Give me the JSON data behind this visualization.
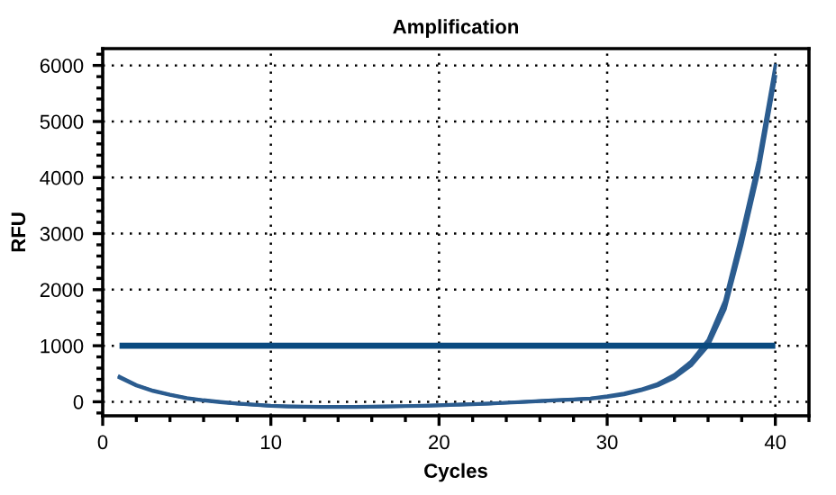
{
  "chart_data": {
    "type": "line",
    "title": "Amplification",
    "xlabel": "Cycles",
    "ylabel": "RFU",
    "x": [
      1,
      2,
      3,
      4,
      5,
      6,
      7,
      8,
      9,
      10,
      11,
      12,
      13,
      14,
      15,
      16,
      17,
      18,
      19,
      20,
      21,
      22,
      23,
      24,
      25,
      26,
      27,
      28,
      29,
      30,
      31,
      32,
      33,
      34,
      35,
      36,
      37,
      38,
      39,
      40
    ],
    "series": [
      {
        "color": "#2b5c8f",
        "values": [
          450,
          300,
          200,
          130,
          70,
          30,
          0,
          -30,
          -50,
          -70,
          -80,
          -85,
          -90,
          -90,
          -90,
          -85,
          -80,
          -75,
          -70,
          -60,
          -50,
          -40,
          -30,
          -15,
          0,
          15,
          30,
          45,
          60,
          100,
          150,
          220,
          320,
          480,
          720,
          1100,
          1800,
          3000,
          4300,
          6000
        ]
      },
      {
        "color": "#2b5c8f",
        "values": [
          430,
          290,
          190,
          120,
          60,
          20,
          -10,
          -35,
          -55,
          -75,
          -85,
          -90,
          -95,
          -95,
          -95,
          -90,
          -85,
          -80,
          -75,
          -65,
          -55,
          -45,
          -35,
          -20,
          -5,
          10,
          25,
          40,
          55,
          85,
          130,
          200,
          290,
          430,
          650,
          1000,
          1650,
          2800,
          4100,
          5800
        ]
      }
    ],
    "ref_lines": [
      {
        "axis": "y",
        "value": 1000,
        "color": "#0a4a80"
      }
    ],
    "xlim": [
      0,
      42
    ],
    "xticks": [
      0,
      10,
      20,
      30,
      40
    ],
    "ylim": [
      -250,
      6300
    ],
    "yticks": [
      0,
      1000,
      2000,
      3000,
      4000,
      5000,
      6000
    ],
    "grid": true,
    "legend": false,
    "marker": "none",
    "line_style": "solid"
  }
}
